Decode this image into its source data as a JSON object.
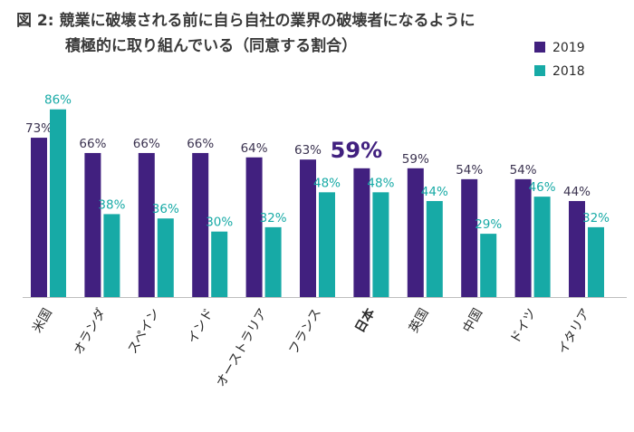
{
  "chart_data": {
    "type": "bar",
    "title": [
      "図 2: 競業に破壊される前に自ら自社の業界の破壊者になるように",
      "積極的に取り組んでいる（同意する割合）"
    ],
    "categories": [
      "米国",
      "オランダ",
      "スペイン",
      "インド",
      "オーストラリア",
      "フランス",
      "日本",
      "英国",
      "中国",
      "ドイツ",
      "イタリア"
    ],
    "highlight": "日本",
    "series": [
      {
        "name": "2019",
        "color": "#41207f",
        "label_color": "#3b3350",
        "values": [
          73,
          66,
          66,
          66,
          64,
          63,
          59,
          59,
          54,
          54,
          44
        ],
        "value_labels": [
          "73%",
          "66%",
          "66%",
          "66%",
          "64%",
          "63%",
          "59%",
          "59%",
          "54%",
          "54%",
          "44%"
        ]
      },
      {
        "name": "2018",
        "color": "#17aaa6",
        "label_color": "#17aaa6",
        "values": [
          86,
          38,
          36,
          30,
          32,
          48,
          48,
          44,
          29,
          46,
          32
        ],
        "value_labels": [
          "86%",
          "38%",
          "36%",
          "30%",
          "32%",
          "48%",
          "48%",
          "44%",
          "29%",
          "46%",
          "32%"
        ]
      }
    ]
  }
}
